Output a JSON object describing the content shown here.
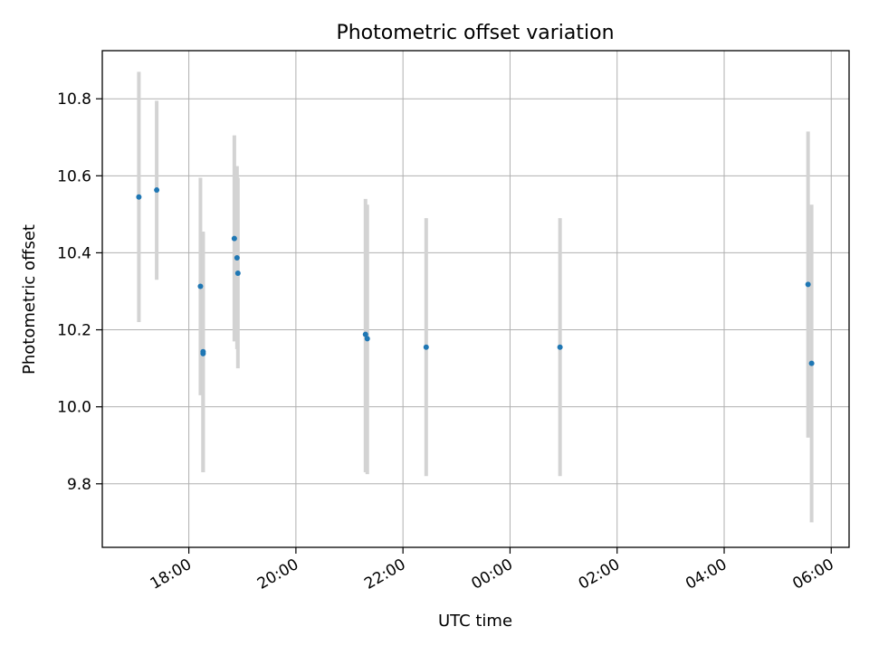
{
  "chart_data": {
    "type": "scatter",
    "title": "Photometric offset variation",
    "xlabel": "UTC time",
    "ylabel": "Photometric offset",
    "x_axis_type": "time",
    "xlim": [
      "2024-01-01T16:23",
      "2024-01-02T06:20"
    ],
    "ylim": [
      9.635,
      10.925
    ],
    "xticks": [
      "18:00",
      "20:00",
      "22:00",
      "00:00",
      "02:00",
      "04:00",
      "06:00"
    ],
    "yticks": [
      "9.8",
      "10.0",
      "10.2",
      "10.4",
      "10.6",
      "10.8"
    ],
    "grid": true,
    "colors": {
      "marker": "#1f77b4",
      "errorbar": "#d3d3d3",
      "grid": "#b0b0b0"
    },
    "points": [
      {
        "x": "2024-01-01T17:04",
        "y": 10.545,
        "yerr_low": 10.22,
        "yerr_high": 10.87
      },
      {
        "x": "2024-01-01T17:24",
        "y": 10.563,
        "yerr_low": 10.33,
        "yerr_high": 10.795
      },
      {
        "x": "2024-01-01T18:13",
        "y": 10.313,
        "yerr_low": 10.03,
        "yerr_high": 10.595
      },
      {
        "x": "2024-01-01T18:16",
        "y": 10.143,
        "yerr_low": 9.83,
        "yerr_high": 10.455
      },
      {
        "x": "2024-01-01T18:16",
        "y": 10.138,
        "yerr_low": 9.83,
        "yerr_high": 10.45
      },
      {
        "x": "2024-01-01T18:51",
        "y": 10.437,
        "yerr_low": 10.17,
        "yerr_high": 10.705
      },
      {
        "x": "2024-01-01T18:54",
        "y": 10.387,
        "yerr_low": 10.15,
        "yerr_high": 10.625
      },
      {
        "x": "2024-01-01T18:55",
        "y": 10.347,
        "yerr_low": 10.1,
        "yerr_high": 10.595
      },
      {
        "x": "2024-01-01T21:18",
        "y": 10.188,
        "yerr_low": 9.83,
        "yerr_high": 10.54
      },
      {
        "x": "2024-01-01T21:20",
        "y": 10.177,
        "yerr_low": 9.825,
        "yerr_high": 10.525
      },
      {
        "x": "2024-01-01T22:26",
        "y": 10.155,
        "yerr_low": 9.82,
        "yerr_high": 10.49
      },
      {
        "x": "2024-01-02T00:56",
        "y": 10.155,
        "yerr_low": 9.82,
        "yerr_high": 10.49
      },
      {
        "x": "2024-01-02T05:34",
        "y": 10.318,
        "yerr_low": 9.92,
        "yerr_high": 10.715
      },
      {
        "x": "2024-01-02T05:38",
        "y": 10.113,
        "yerr_low": 9.7,
        "yerr_high": 10.525
      }
    ]
  }
}
